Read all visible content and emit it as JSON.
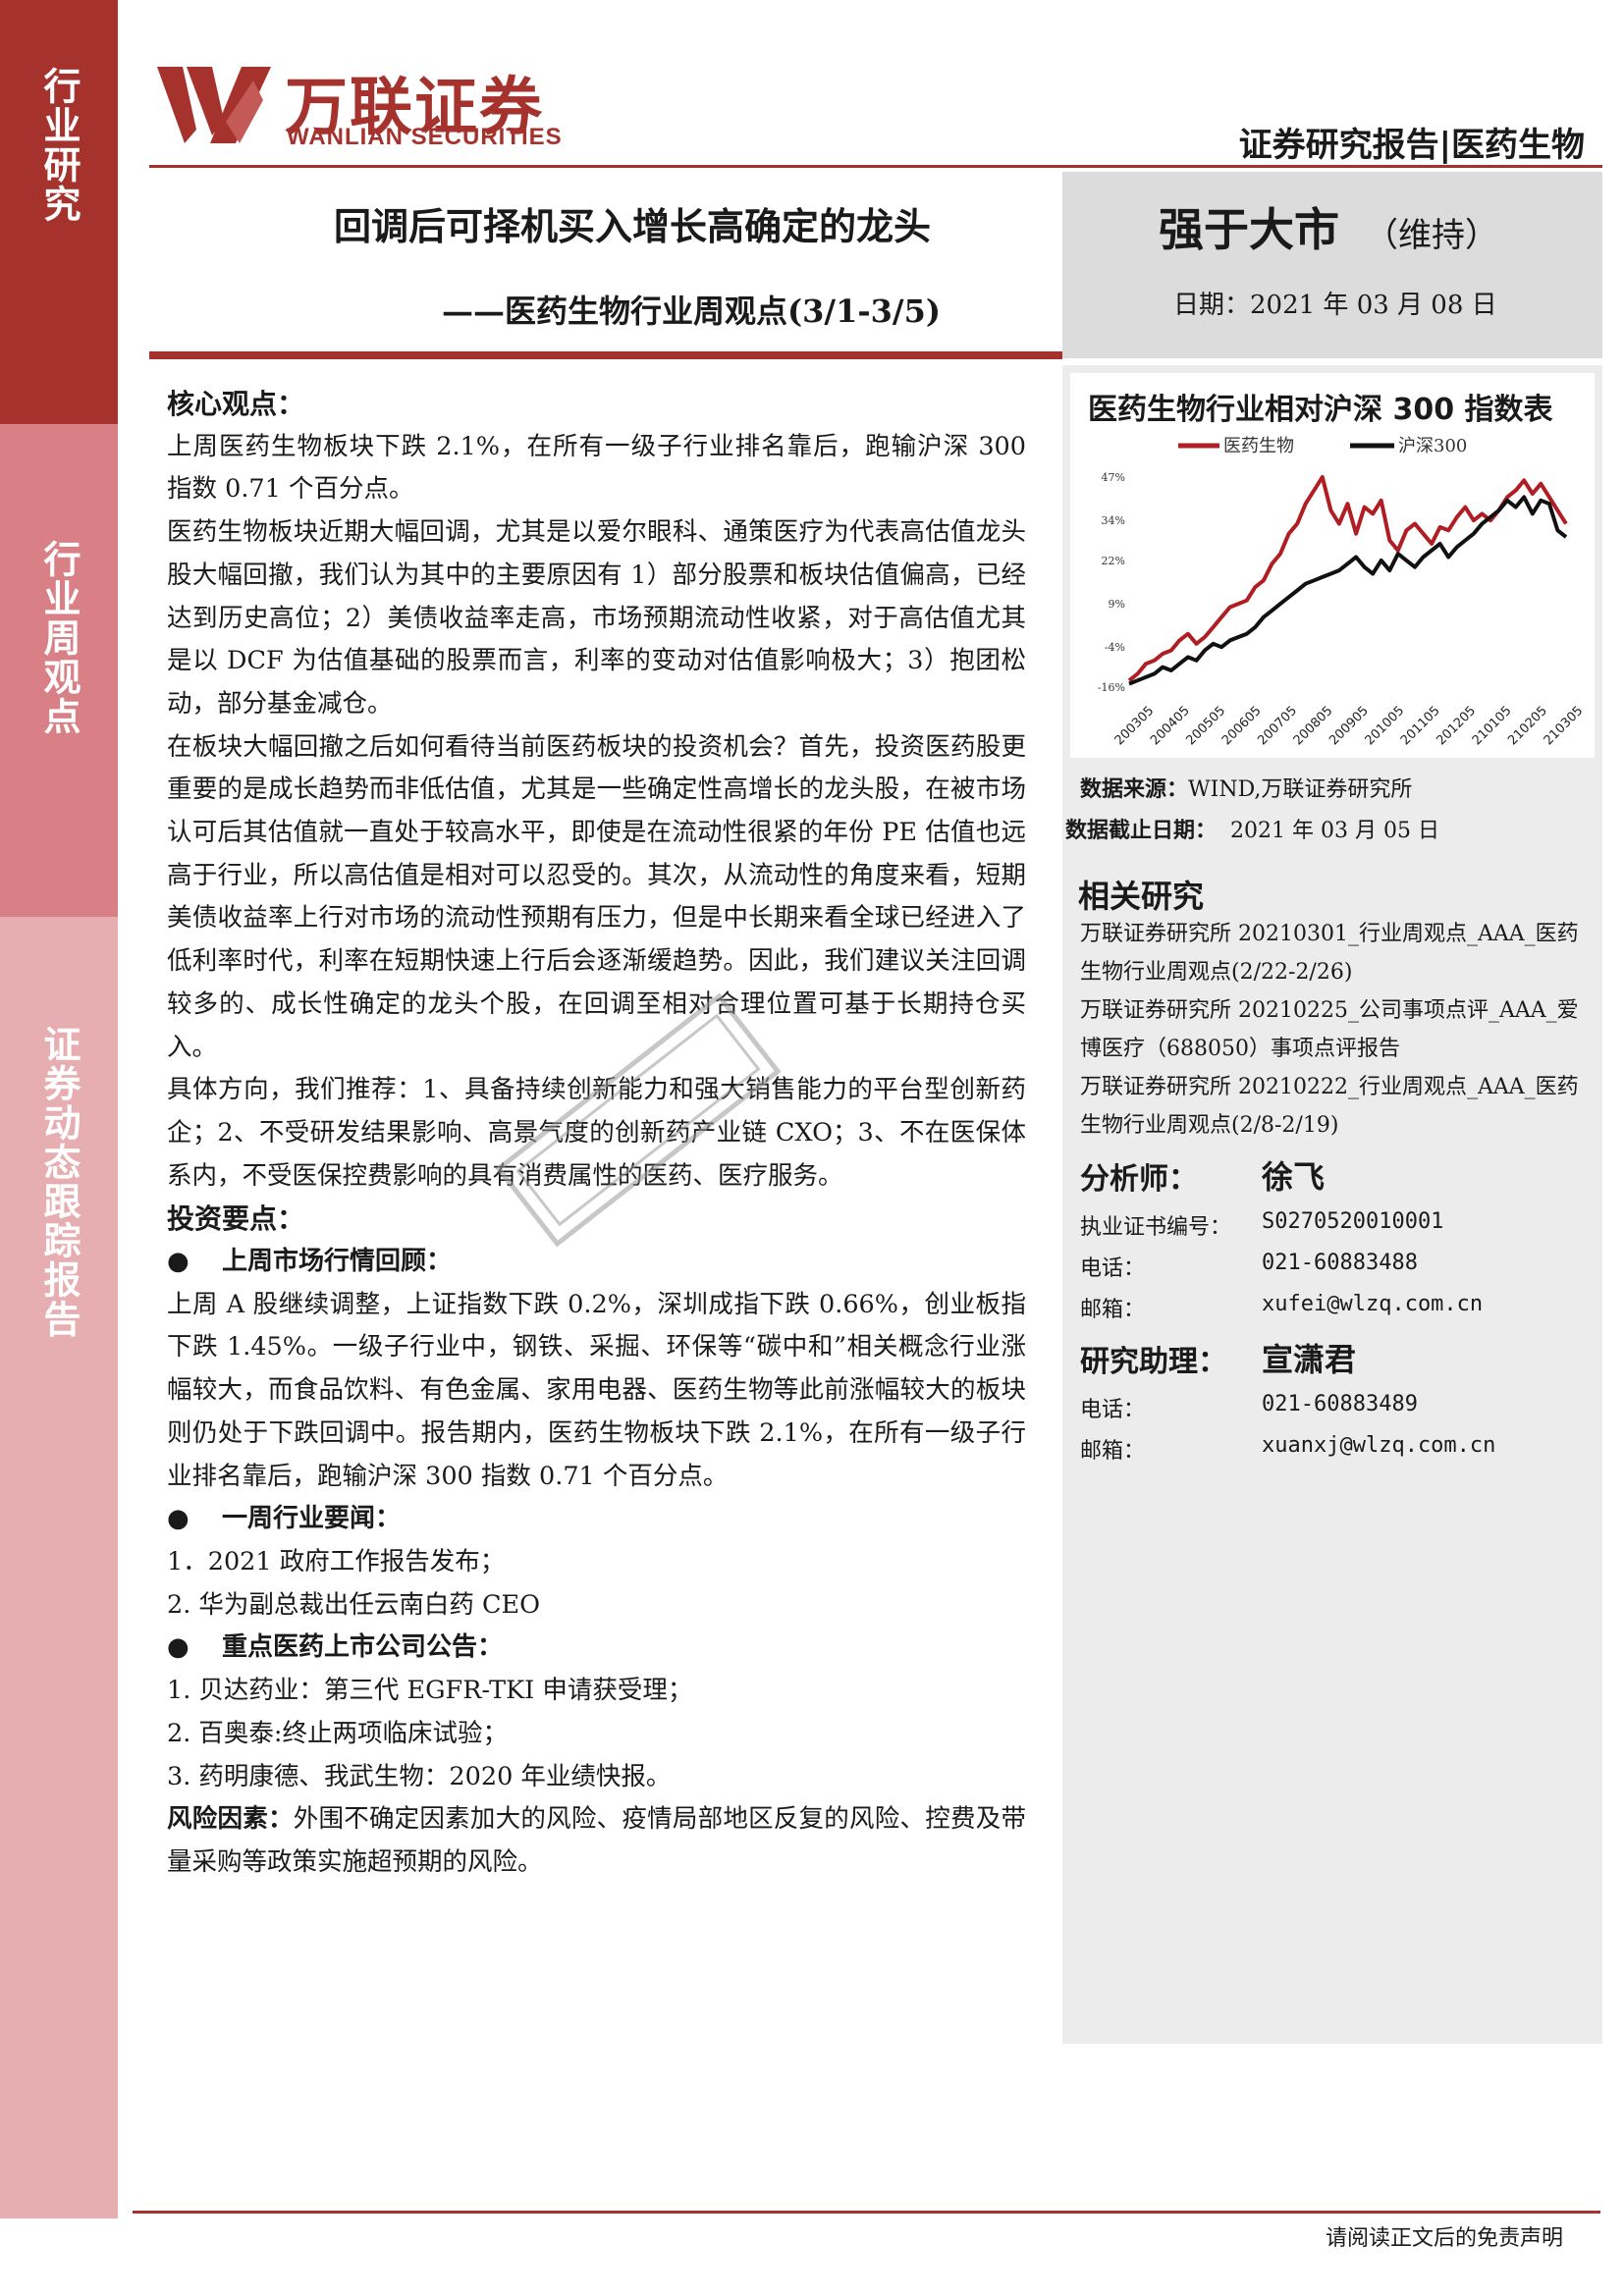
{
  "sidebar": {
    "top": "行业研究",
    "mid": "行业周观点",
    "bottom": "证券动态跟踪报告"
  },
  "header": {
    "logo_cn": "万联证券",
    "logo_en": "WANLIAN SECURITIES",
    "report_type": "证券研究报告|医药生物"
  },
  "title": {
    "main": "回调后可择机买入增长高确定的龙头",
    "sub": "——医药生物行业周观点(3/1-3/5)"
  },
  "rating": {
    "label": "强于大市",
    "keep": "（维持）",
    "date": "日期：2021 年 03 月 08 日"
  },
  "chart_data": {
    "type": "line",
    "title": "医药生物行业相对沪深 300 指数表",
    "series": [
      {
        "name": "医药生物",
        "color": "#b01e23",
        "values": [
          -14,
          -12,
          -9,
          -8,
          -6,
          -5,
          -2,
          0,
          -3,
          -1,
          2,
          5,
          8,
          9,
          10,
          14,
          16,
          21,
          24,
          30,
          33,
          39,
          43,
          47,
          37,
          33,
          39,
          30,
          38,
          36,
          40,
          28,
          25,
          31,
          33,
          30,
          27,
          32,
          31,
          35,
          38,
          34,
          36,
          34,
          37,
          41,
          43,
          46,
          42,
          45,
          41,
          37,
          33
        ]
      },
      {
        "name": "沪深300",
        "color": "#111111",
        "values": [
          -15,
          -14,
          -13,
          -12,
          -10,
          -11,
          -9,
          -7,
          -8,
          -5,
          -3,
          -4,
          -2,
          -1,
          0,
          2,
          5,
          7,
          9,
          11,
          13,
          15,
          16,
          17,
          18,
          19,
          21,
          23,
          20,
          18,
          22,
          19,
          24,
          22,
          20,
          23,
          25,
          27,
          23,
          26,
          28,
          30,
          33,
          35,
          37,
          40,
          38,
          41,
          36,
          40,
          39,
          31,
          29
        ]
      }
    ],
    "ytick_labels": [
      "47%",
      "34%",
      "22%",
      "9%",
      "-4%",
      "-16%"
    ],
    "ylim": [
      -16,
      47
    ],
    "x_tick_labels": [
      "200305",
      "200405",
      "200505",
      "200605",
      "200705",
      "200805",
      "200905",
      "201005",
      "201105",
      "201205",
      "210105",
      "210205",
      "210305"
    ],
    "legend": [
      "医药生物",
      "沪深300"
    ]
  },
  "chart_notes": {
    "source_label": "数据来源：",
    "source_value": "WIND,万联证券研究所",
    "cutoff_label": "数据截止日期：",
    "cutoff_value": "2021 年 03 月 05 日"
  },
  "related": {
    "heading": "相关研究",
    "items": [
      "万联证券研究所 20210301_行业周观点_AAA_医药生物行业周观点(2/22-2/26)",
      "万联证券研究所 20210225_公司事项点评_AAA_爱博医疗（688050）事项点评报告",
      "万联证券研究所 20210222_行业周观点_AAA_医药生物行业周观点(2/8-2/19)"
    ]
  },
  "analyst": {
    "label": "分析师：",
    "name": "徐飞",
    "cert_label": "执业证书编号：",
    "cert": "S0270520010001",
    "phone_label": "电话：",
    "phone": "021-60883488",
    "email_label": "邮箱：",
    "email": "xufei@wlzq.com.cn"
  },
  "assistant": {
    "label": "研究助理：",
    "name": "宣潇君",
    "phone_label": "电话：",
    "phone": "021-60883489",
    "email_label": "邮箱：",
    "email": "xuanxj@wlzq.com.cn"
  },
  "body": {
    "core_heading": "核心观点：",
    "p1": "上周医药生物板块下跌 2.1%，在所有一级子行业排名靠后，跑输沪深 300 指数 0.71 个百分点。",
    "p2": "医药生物板块近期大幅回调，尤其是以爱尔眼科、通策医疗为代表高估值龙头股大幅回撤，我们认为其中的主要原因有 1）部分股票和板块估值偏高，已经达到历史高位；2）美债收益率走高，市场预期流动性收紧，对于高估值尤其是以 DCF 为估值基础的股票而言，利率的变动对估值影响极大；3）抱团松动，部分基金减仓。",
    "p3": "在板块大幅回撤之后如何看待当前医药板块的投资机会？首先，投资医药股更重要的是成长趋势而非低估值，尤其是一些确定性高增长的龙头股，在被市场认可后其估值就一直处于较高水平，即使是在流动性很紧的年份 PE 估值也远高于行业，所以高估值是相对可以忍受的。其次，从流动性的角度来看，短期美债收益率上行对市场的流动性预期有压力，但是中长期来看全球已经进入了低利率时代，利率在短期快速上行后会逐渐缓趋势。因此，我们建议关注回调较多的、成长性确定的龙头个股，在回调至相对合理位置可基于长期持仓买入。",
    "p4": "具体方向，我们推荐：1、具备持续创新能力和强大销售能力的平台型创新药企；2、不受研发结果影响、高景气度的创新药产业链 CXO；3、不在医保体系内，不受医保控费影响的具有消费属性的医药、医疗服务。",
    "invest_heading": "投资要点：",
    "b1": "上周市场行情回顾：",
    "p5": "上周 A 股继续调整，上证指数下跌 0.2%，深圳成指下跌 0.66%，创业板指下跌 1.45%。一级子行业中，钢铁、采掘、环保等“碳中和”相关概念行业涨幅较大，而食品饮料、有色金属、家用电器、医药生物等此前涨幅较大的板块则仍处于下跌回调中。报告期内，医药生物板块下跌 2.1%，在所有一级子行业排名靠后，跑输沪深 300 指数 0.71 个百分点。",
    "b2": "一周行业要闻：",
    "news": [
      "1．2021 政府工作报告发布；",
      "2. 华为副总裁出任云南白药 CEO"
    ],
    "b3": "重点医药上市公司公告：",
    "announcements": [
      "1.  贝达药业：第三代 EGFR-TKI 申请获受理；",
      "2.  百奥泰:终止两项临床试验；",
      "3.  药明康德、我武生物：2020 年业绩快报。"
    ],
    "risk_label": "风险因素：",
    "risk_text": "外围不确定因素加大的风险、疫情局部地区反复的风险、控费及带量采购等政策实施超预期的风险。"
  },
  "footer": {
    "disclaimer": "请阅读正文后的免责声明"
  },
  "colors": {
    "brand_red": "#a6322e",
    "band_mid": "#d97f86",
    "band_light": "#e7aeb2",
    "panel_gray": "#ececec"
  }
}
